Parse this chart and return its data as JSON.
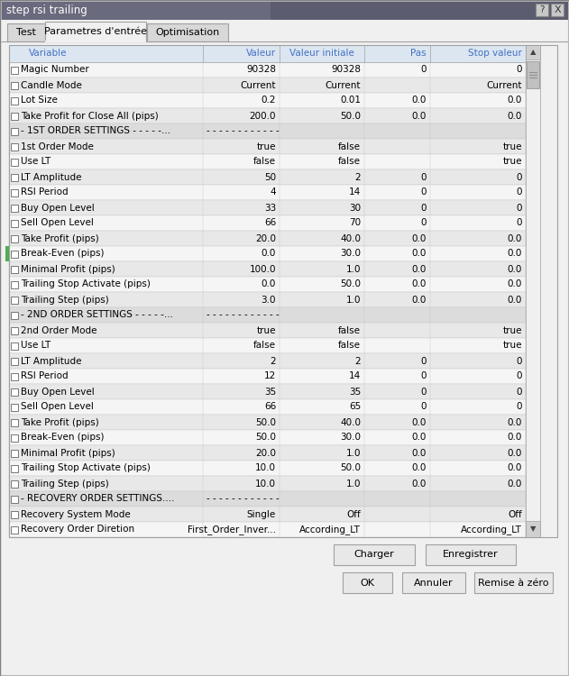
{
  "title": "step rsi trailing",
  "tabs": [
    "Test",
    "Parametres d'entrée",
    "Optimisation"
  ],
  "active_tab": 1,
  "col_headers": [
    "Variable",
    "Valeur",
    "Valeur initiale",
    "Pas",
    "Stop valeur"
  ],
  "rows": [
    {
      "var": "Magic Number",
      "valeur": "90328",
      "initiale": "90328",
      "pas": "0",
      "stop": "0",
      "section": false,
      "alt": false
    },
    {
      "var": "Candle Mode",
      "valeur": "Current",
      "initiale": "Current",
      "pas": "",
      "stop": "Current",
      "section": false,
      "alt": true
    },
    {
      "var": "Lot Size",
      "valeur": "0.2",
      "initiale": "0.01",
      "pas": "0.0",
      "stop": "0.0",
      "section": false,
      "alt": false
    },
    {
      "var": "Take Profit for Close All (pips)",
      "valeur": "200.0",
      "initiale": "50.0",
      "pas": "0.0",
      "stop": "0.0",
      "section": false,
      "alt": true
    },
    {
      "var": "- 1ST ORDER SETTINGS - - - - -...",
      "valeur": "- - - - - - - - - - - -",
      "initiale": "",
      "pas": "",
      "stop": "",
      "section": true,
      "alt": false
    },
    {
      "var": "1st Order Mode",
      "valeur": "true",
      "initiale": "false",
      "pas": "",
      "stop": "true",
      "section": false,
      "alt": true
    },
    {
      "var": "Use LT",
      "valeur": "false",
      "initiale": "false",
      "pas": "",
      "stop": "true",
      "section": false,
      "alt": false
    },
    {
      "var": "LT Amplitude",
      "valeur": "50",
      "initiale": "2",
      "pas": "0",
      "stop": "0",
      "section": false,
      "alt": true
    },
    {
      "var": "RSI Period",
      "valeur": "4",
      "initiale": "14",
      "pas": "0",
      "stop": "0",
      "section": false,
      "alt": false
    },
    {
      "var": "Buy Open Level",
      "valeur": "33",
      "initiale": "30",
      "pas": "0",
      "stop": "0",
      "section": false,
      "alt": true
    },
    {
      "var": "Sell Open Level",
      "valeur": "66",
      "initiale": "70",
      "pas": "0",
      "stop": "0",
      "section": false,
      "alt": false
    },
    {
      "var": "Take Profit (pips)",
      "valeur": "20.0",
      "initiale": "40.0",
      "pas": "0.0",
      "stop": "0.0",
      "section": false,
      "alt": true
    },
    {
      "var": "Break-Even (pips)",
      "valeur": "0.0",
      "initiale": "30.0",
      "pas": "0.0",
      "stop": "0.0",
      "section": false,
      "alt": false,
      "green": true
    },
    {
      "var": "Minimal Profit (pips)",
      "valeur": "100.0",
      "initiale": "1.0",
      "pas": "0.0",
      "stop": "0.0",
      "section": false,
      "alt": true
    },
    {
      "var": "Trailing Stop Activate (pips)",
      "valeur": "0.0",
      "initiale": "50.0",
      "pas": "0.0",
      "stop": "0.0",
      "section": false,
      "alt": false
    },
    {
      "var": "Trailing Step (pips)",
      "valeur": "3.0",
      "initiale": "1.0",
      "pas": "0.0",
      "stop": "0.0",
      "section": false,
      "alt": true
    },
    {
      "var": "- 2ND ORDER SETTINGS - - - - -...",
      "valeur": "- - - - - - - - - - - -",
      "initiale": "",
      "pas": "",
      "stop": "",
      "section": true,
      "alt": false
    },
    {
      "var": "2nd Order Mode",
      "valeur": "true",
      "initiale": "false",
      "pas": "",
      "stop": "true",
      "section": false,
      "alt": true
    },
    {
      "var": "Use LT",
      "valeur": "false",
      "initiale": "false",
      "pas": "",
      "stop": "true",
      "section": false,
      "alt": false
    },
    {
      "var": "LT Amplitude",
      "valeur": "2",
      "initiale": "2",
      "pas": "0",
      "stop": "0",
      "section": false,
      "alt": true
    },
    {
      "var": "RSI Period",
      "valeur": "12",
      "initiale": "14",
      "pas": "0",
      "stop": "0",
      "section": false,
      "alt": false
    },
    {
      "var": "Buy Open Level",
      "valeur": "35",
      "initiale": "35",
      "pas": "0",
      "stop": "0",
      "section": false,
      "alt": true
    },
    {
      "var": "Sell Open Level",
      "valeur": "66",
      "initiale": "65",
      "pas": "0",
      "stop": "0",
      "section": false,
      "alt": false
    },
    {
      "var": "Take Profit (pips)",
      "valeur": "50.0",
      "initiale": "40.0",
      "pas": "0.0",
      "stop": "0.0",
      "section": false,
      "alt": true
    },
    {
      "var": "Break-Even (pips)",
      "valeur": "50.0",
      "initiale": "30.0",
      "pas": "0.0",
      "stop": "0.0",
      "section": false,
      "alt": false
    },
    {
      "var": "Minimal Profit (pips)",
      "valeur": "20.0",
      "initiale": "1.0",
      "pas": "0.0",
      "stop": "0.0",
      "section": false,
      "alt": true
    },
    {
      "var": "Trailing Stop Activate (pips)",
      "valeur": "10.0",
      "initiale": "50.0",
      "pas": "0.0",
      "stop": "0.0",
      "section": false,
      "alt": false
    },
    {
      "var": "Trailing Step (pips)",
      "valeur": "10.0",
      "initiale": "1.0",
      "pas": "0.0",
      "stop": "0.0",
      "section": false,
      "alt": true
    },
    {
      "var": "- RECOVERY ORDER SETTINGS....",
      "valeur": "- - - - - - - - - - - -",
      "initiale": "",
      "pas": "",
      "stop": "",
      "section": true,
      "alt": false
    },
    {
      "var": "Recovery System Mode",
      "valeur": "Single",
      "initiale": "Off",
      "pas": "",
      "stop": "Off",
      "section": false,
      "alt": true
    },
    {
      "var": "Recovery Order Diretion",
      "valeur": "First_Order_Inver...",
      "initiale": "According_LT",
      "pas": "",
      "stop": "According_LT",
      "section": false,
      "alt": false
    }
  ],
  "bg_dialog": "#f0f0f0",
  "bg_titlebar": "#5a5a6e",
  "bg_tab_active": "#f0f0f0",
  "bg_tab_inactive": "#d8d8d8",
  "bg_header_row": "#dce6f1",
  "bg_row_alt": "#e8e8e8",
  "bg_row_normal": "#f5f5f5",
  "bg_section": "#dcdcdc",
  "color_header_text": "#4472c4",
  "color_row_text": "#000000",
  "color_border": "#a0a0a0",
  "color_border_light": "#c8c8c8",
  "scrollbar_bg": "#f0f0f0",
  "scrollbar_btn": "#d0d0d0",
  "scrollbar_thumb": "#c0c0c0",
  "green_marker_color": "#4caf50",
  "button_bg": "#e8e8e8",
  "button_border": "#a0a0a0",
  "tab_border": "#a0a0a0",
  "titlebar_gradient_start": "#6a6a7a",
  "titlebar_gradient_end": "#3a3a4a"
}
